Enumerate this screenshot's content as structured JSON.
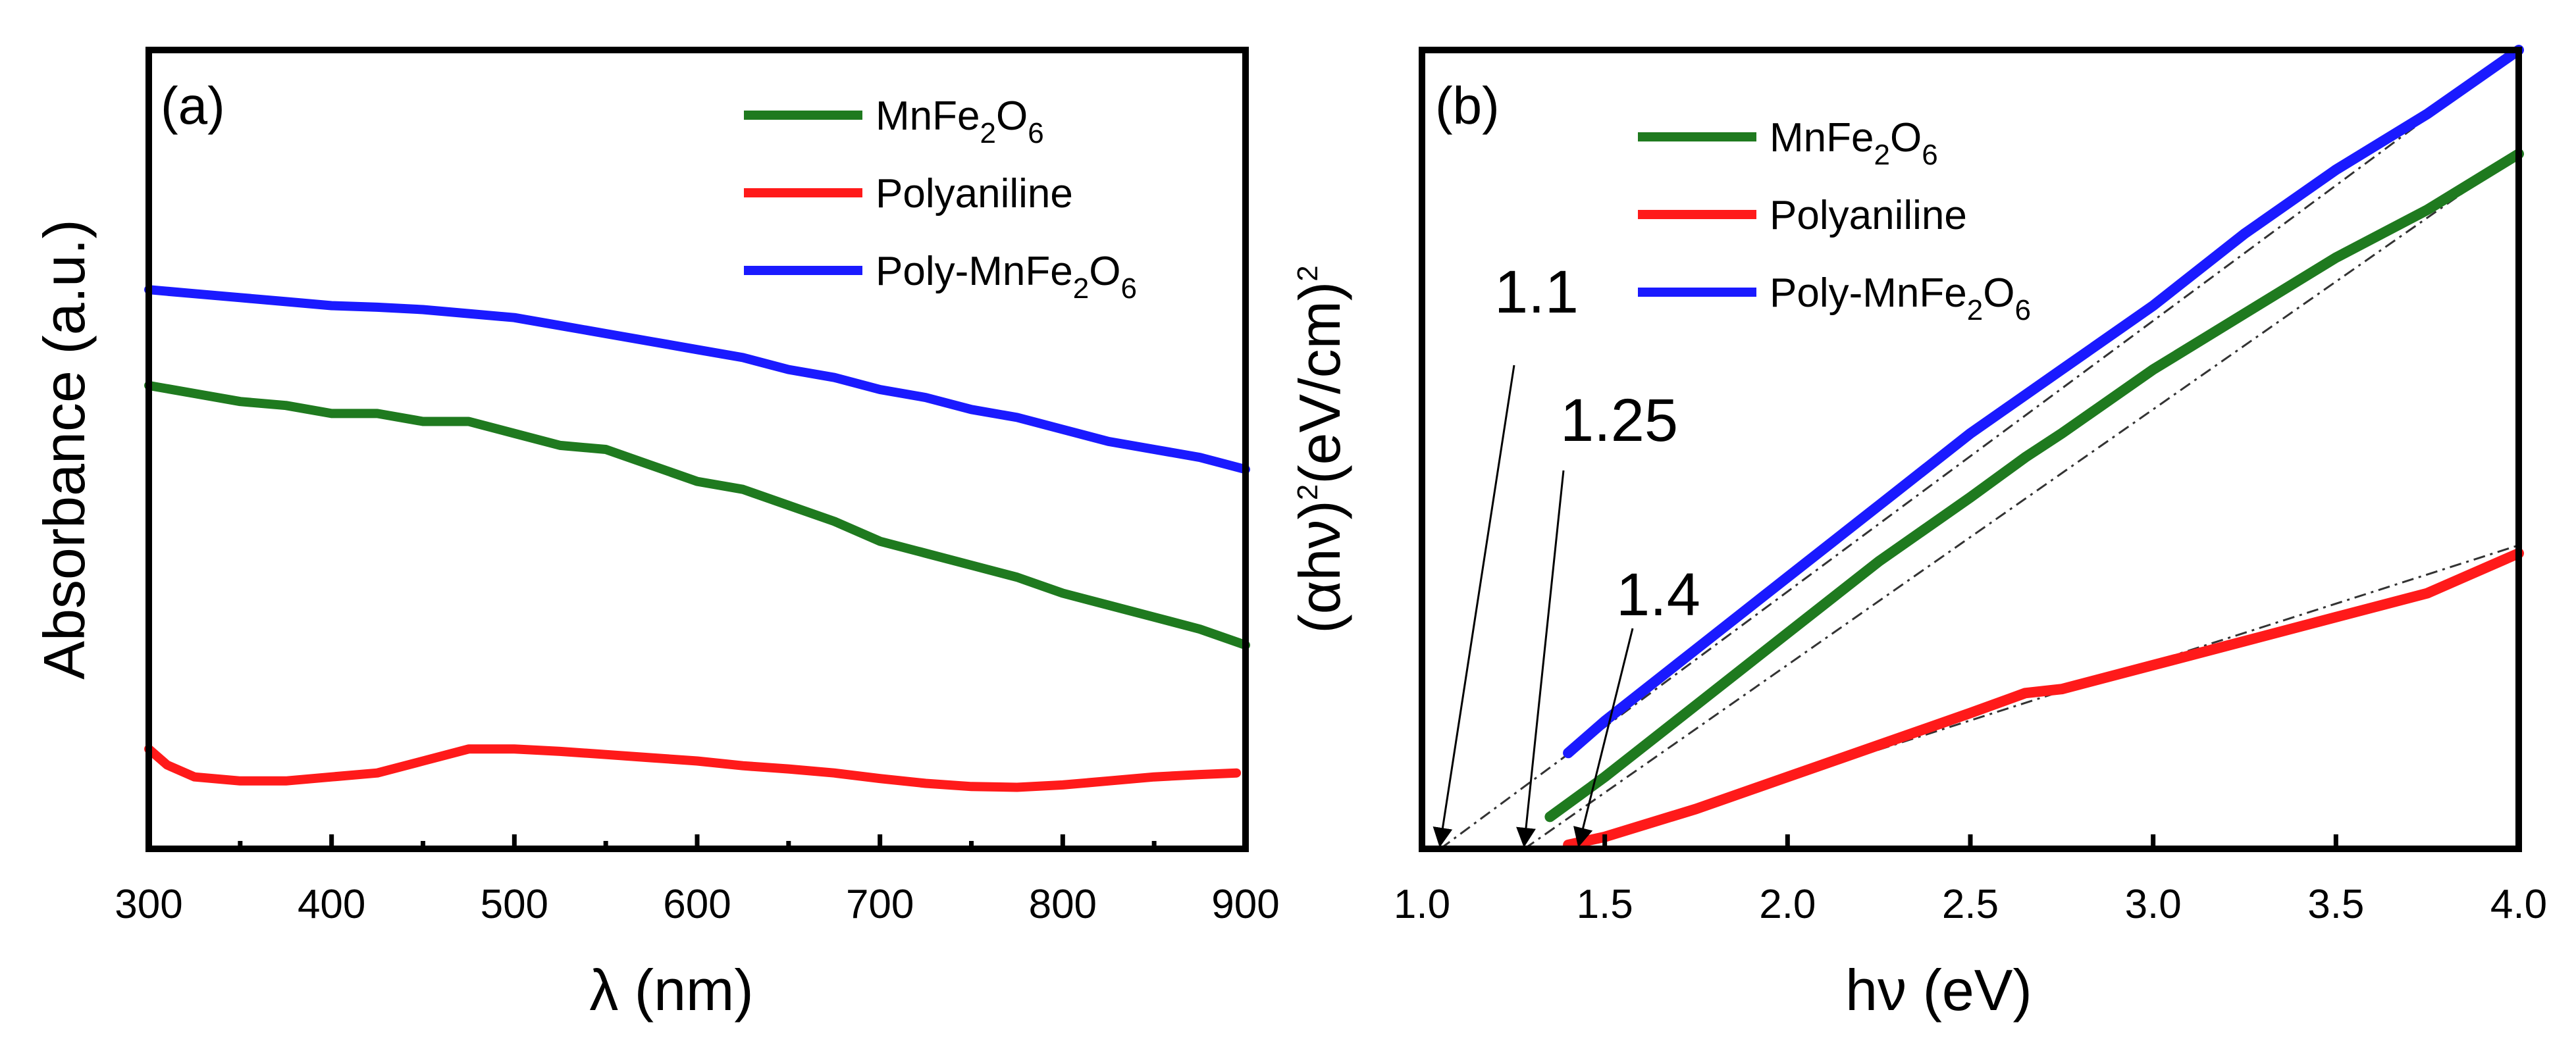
{
  "chart_data": [
    {
      "id": "a",
      "type": "line",
      "panel_label": "(a)",
      "xlabel": "λ (nm)",
      "ylabel": "Absorbance (a.u.)",
      "xlim": [
        300,
        900
      ],
      "ylim": [
        0,
        1
      ],
      "xticks": [
        300,
        400,
        500,
        600,
        700,
        800,
        900
      ],
      "xtick_labels": [
        "300",
        "400",
        "500",
        "600",
        "700",
        "800",
        "900"
      ],
      "y_tick_labels_shown": false,
      "legend_position": "top-right",
      "series": [
        {
          "name": "MnFe2O6",
          "legend": [
            "MnFe",
            "2",
            "O",
            "6"
          ],
          "color": "#1f7a1f",
          "x": [
            300,
            325,
            350,
            375,
            400,
            425,
            450,
            475,
            500,
            525,
            550,
            575,
            600,
            625,
            650,
            675,
            700,
            725,
            750,
            775,
            800,
            825,
            850,
            875,
            900
          ],
          "y": [
            0.58,
            0.57,
            0.56,
            0.555,
            0.545,
            0.545,
            0.535,
            0.535,
            0.52,
            0.505,
            0.5,
            0.48,
            0.46,
            0.45,
            0.43,
            0.41,
            0.385,
            0.37,
            0.355,
            0.34,
            0.32,
            0.305,
            0.29,
            0.275,
            0.255
          ]
        },
        {
          "name": "Polyaniline",
          "legend": [
            "Polyaniline"
          ],
          "color": "#ff1a1a",
          "x": [
            300,
            310,
            325,
            350,
            375,
            400,
            425,
            450,
            475,
            500,
            525,
            550,
            575,
            600,
            625,
            650,
            675,
            700,
            725,
            750,
            775,
            800,
            825,
            850,
            875,
            895
          ],
          "y": [
            0.125,
            0.105,
            0.09,
            0.085,
            0.085,
            0.09,
            0.095,
            0.11,
            0.125,
            0.125,
            0.122,
            0.118,
            0.114,
            0.11,
            0.104,
            0.1,
            0.095,
            0.088,
            0.082,
            0.078,
            0.077,
            0.08,
            0.085,
            0.09,
            0.093,
            0.095
          ]
        },
        {
          "name": "Poly-MnFe2O6",
          "legend": [
            "Poly-MnFe",
            "2",
            "O",
            "6"
          ],
          "color": "#1a1aff",
          "x": [
            300,
            325,
            350,
            375,
            400,
            425,
            450,
            475,
            500,
            525,
            550,
            575,
            600,
            625,
            650,
            675,
            700,
            725,
            750,
            775,
            800,
            825,
            850,
            875,
            900
          ],
          "y": [
            0.7,
            0.695,
            0.69,
            0.685,
            0.68,
            0.678,
            0.675,
            0.67,
            0.665,
            0.655,
            0.645,
            0.635,
            0.625,
            0.615,
            0.6,
            0.59,
            0.575,
            0.565,
            0.55,
            0.54,
            0.525,
            0.51,
            0.5,
            0.49,
            0.475
          ]
        }
      ]
    },
    {
      "id": "b",
      "type": "line",
      "panel_label": "(b)",
      "xlabel": "hν (eV)",
      "ylabel": "(αhν)²(eV/cm)²",
      "ylabel_parts": [
        "(αhν)",
        "2",
        "(eV/cm)",
        "2"
      ],
      "xlim": [
        1.0,
        4.0
      ],
      "ylim": [
        0,
        1
      ],
      "xticks": [
        1.0,
        1.5,
        2.0,
        2.5,
        3.0,
        3.5,
        4.0
      ],
      "xtick_labels": [
        "1.0",
        "1.5",
        "2.0",
        "2.5",
        "3.0",
        "3.5",
        "4.0"
      ],
      "y_tick_labels_shown": false,
      "legend_position": "top-left",
      "series": [
        {
          "name": "MnFe2O6",
          "legend": [
            "MnFe",
            "2",
            "O",
            "6"
          ],
          "color": "#1f7a1f",
          "x": [
            1.35,
            1.5,
            1.75,
            2.0,
            2.25,
            2.5,
            2.65,
            2.75,
            3.0,
            3.25,
            3.5,
            3.75,
            4.0
          ],
          "y": [
            0.04,
            0.09,
            0.18,
            0.27,
            0.36,
            0.44,
            0.49,
            0.52,
            0.6,
            0.67,
            0.74,
            0.8,
            0.87
          ]
        },
        {
          "name": "Polyaniline",
          "legend": [
            "Polyaniline"
          ],
          "color": "#ff1a1a",
          "x": [
            1.4,
            1.5,
            1.75,
            2.0,
            2.25,
            2.5,
            2.65,
            2.75,
            3.0,
            3.25,
            3.5,
            3.75,
            4.0
          ],
          "y": [
            0.005,
            0.015,
            0.05,
            0.09,
            0.13,
            0.17,
            0.195,
            0.2,
            0.23,
            0.26,
            0.29,
            0.32,
            0.37
          ]
        },
        {
          "name": "Poly-MnFe2O6",
          "legend": [
            "Poly-MnFe",
            "2",
            "O",
            "6"
          ],
          "color": "#1a1aff",
          "x": [
            1.4,
            1.5,
            1.75,
            2.0,
            2.25,
            2.5,
            2.75,
            3.0,
            3.25,
            3.5,
            3.75,
            4.0
          ],
          "y": [
            0.12,
            0.16,
            0.25,
            0.34,
            0.43,
            0.52,
            0.6,
            0.68,
            0.77,
            0.85,
            0.92,
            1.0
          ]
        }
      ],
      "tangent_lines": [
        {
          "x0": 1.05,
          "y0": 0.0,
          "x1": 4.0,
          "y1": 1.0
        },
        {
          "x0": 1.28,
          "y0": 0.0,
          "x1": 4.0,
          "y1": 0.87
        },
        {
          "x0": 1.4,
          "y0": 0.0,
          "x1": 4.0,
          "y1": 0.38
        }
      ],
      "annotations": [
        {
          "text": "1.1",
          "x_intercept": 1.05
        },
        {
          "text": "1.25",
          "x_intercept": 1.28
        },
        {
          "text": "1.4",
          "x_intercept": 1.43
        }
      ]
    }
  ]
}
